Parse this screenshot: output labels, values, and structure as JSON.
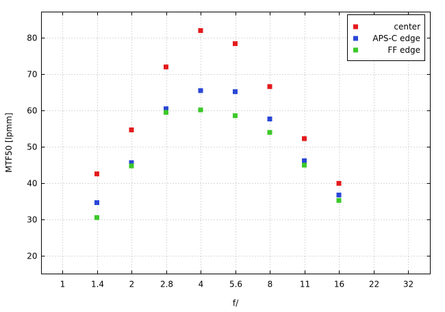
{
  "chart_data": {
    "type": "scatter",
    "xlabel": "f/",
    "ylabel": "MTF50 [lpmm]",
    "x_ticks": [
      "1",
      "1.4",
      "2",
      "2.8",
      "4",
      "5.6",
      "8",
      "11",
      "16",
      "22",
      "32"
    ],
    "ylim": [
      15,
      87
    ],
    "y_ticks": [
      20,
      30,
      40,
      50,
      60,
      70,
      80
    ],
    "grid": true,
    "legend_position": "top-right",
    "series": [
      {
        "name": "center",
        "color": "#e41a1c",
        "points": [
          {
            "x": "1.4",
            "y": 42.5
          },
          {
            "x": "2",
            "y": 54.6
          },
          {
            "x": "2.8",
            "y": 71.9
          },
          {
            "x": "4",
            "y": 81.9
          },
          {
            "x": "5.6",
            "y": 78.3
          },
          {
            "x": "8",
            "y": 66.5
          },
          {
            "x": "11",
            "y": 52.2
          },
          {
            "x": "16",
            "y": 39.9
          }
        ]
      },
      {
        "name": "APS-C edge",
        "color": "#2a46d6",
        "points": [
          {
            "x": "1.4",
            "y": 34.6
          },
          {
            "x": "2",
            "y": 45.6
          },
          {
            "x": "2.8",
            "y": 60.4
          },
          {
            "x": "4",
            "y": 65.4
          },
          {
            "x": "5.6",
            "y": 65.1
          },
          {
            "x": "8",
            "y": 57.6
          },
          {
            "x": "11",
            "y": 46.1
          },
          {
            "x": "16",
            "y": 36.7
          }
        ]
      },
      {
        "name": "FF edge",
        "color": "#3cc82a",
        "points": [
          {
            "x": "1.4",
            "y": 30.5
          },
          {
            "x": "2",
            "y": 44.7
          },
          {
            "x": "2.8",
            "y": 59.4
          },
          {
            "x": "4",
            "y": 60.1
          },
          {
            "x": "5.6",
            "y": 58.5
          },
          {
            "x": "8",
            "y": 53.9
          },
          {
            "x": "11",
            "y": 44.9
          },
          {
            "x": "16",
            "y": 35.2
          }
        ]
      }
    ]
  }
}
